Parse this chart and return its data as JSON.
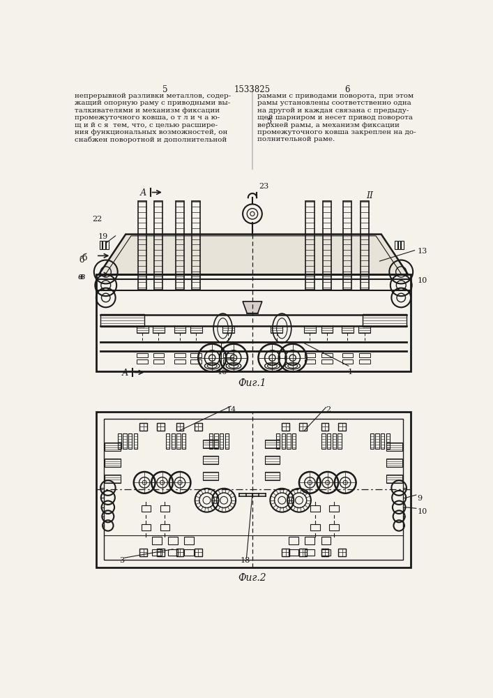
{
  "page_color": "#f5f2ec",
  "line_color": "#1a1a1a",
  "text_color": "#1a1a1a",
  "header": {
    "page_left": "5",
    "patent_number": "1533825",
    "page_right": "6"
  },
  "left_text": "непрерывной разливки металлов, содер-\nжащий опорную раму с приводными вы-\nталкивателями и механизм фиксации\nпромежуточного ковша, о т л и ч а ю-\nщ и й с я  тем, что, с целью расшире-\nния функциональных возможностей, он\nснабжен поворотной и дополнительной",
  "right_text": "рамами с приводами поворота, при этом\nрамы установлены соответственно одна\nна другой и каждая связана с предыду-\nщей шарниром и несет привод поворота\nверхней рамы, а механизм фиксации\nпромежуточного ковша закреплен на до-\nполнительной раме.",
  "fig1_label": "Фиг.1",
  "fig2_label": "Фиг.2"
}
